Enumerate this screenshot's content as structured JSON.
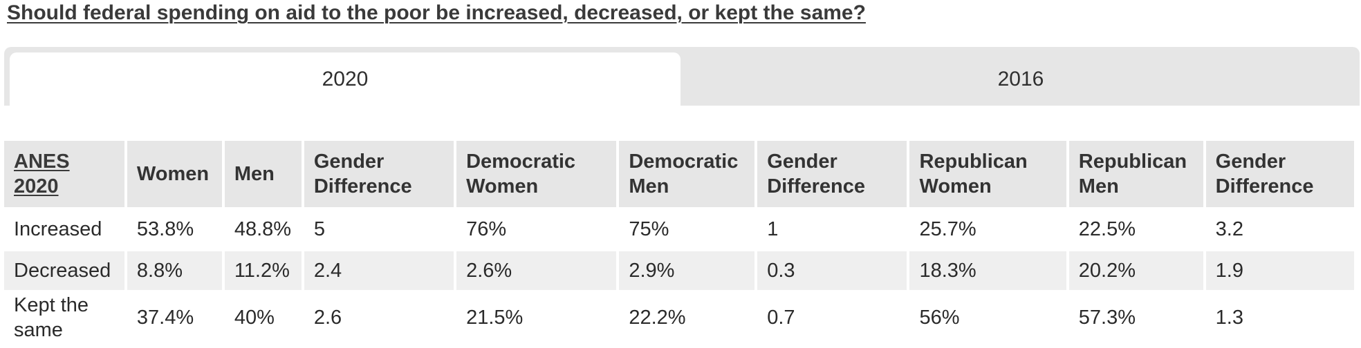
{
  "question": "Should federal spending on aid to the poor be increased, decreased, or kept the same?",
  "tabs": [
    {
      "label": "2020",
      "active": true
    },
    {
      "label": "2016",
      "active": false
    }
  ],
  "table": {
    "corner": "ANES 2020",
    "headers": [
      "Women",
      "Men",
      "Gender Difference",
      "Democratic Women",
      "Democratic Men",
      "Gender Difference",
      "Republican Women",
      "Republican Men",
      "Gender Difference"
    ],
    "rows": [
      {
        "label": "Increased",
        "cells": [
          "53.8%",
          "48.8%",
          "5",
          "76%",
          "75%",
          "1",
          "25.7%",
          "22.5%",
          "3.2"
        ]
      },
      {
        "label": "Decreased",
        "cells": [
          "8.8%",
          "11.2%",
          "2.4",
          "2.6%",
          "2.9%",
          "0.3",
          "18.3%",
          "20.2%",
          "1.9"
        ]
      },
      {
        "label": "Kept the same",
        "cells": [
          "37.4%",
          "40%",
          "2.6",
          "21.5%",
          "22.2%",
          "0.7",
          "56%",
          "57.3%",
          "1.3"
        ]
      }
    ]
  }
}
